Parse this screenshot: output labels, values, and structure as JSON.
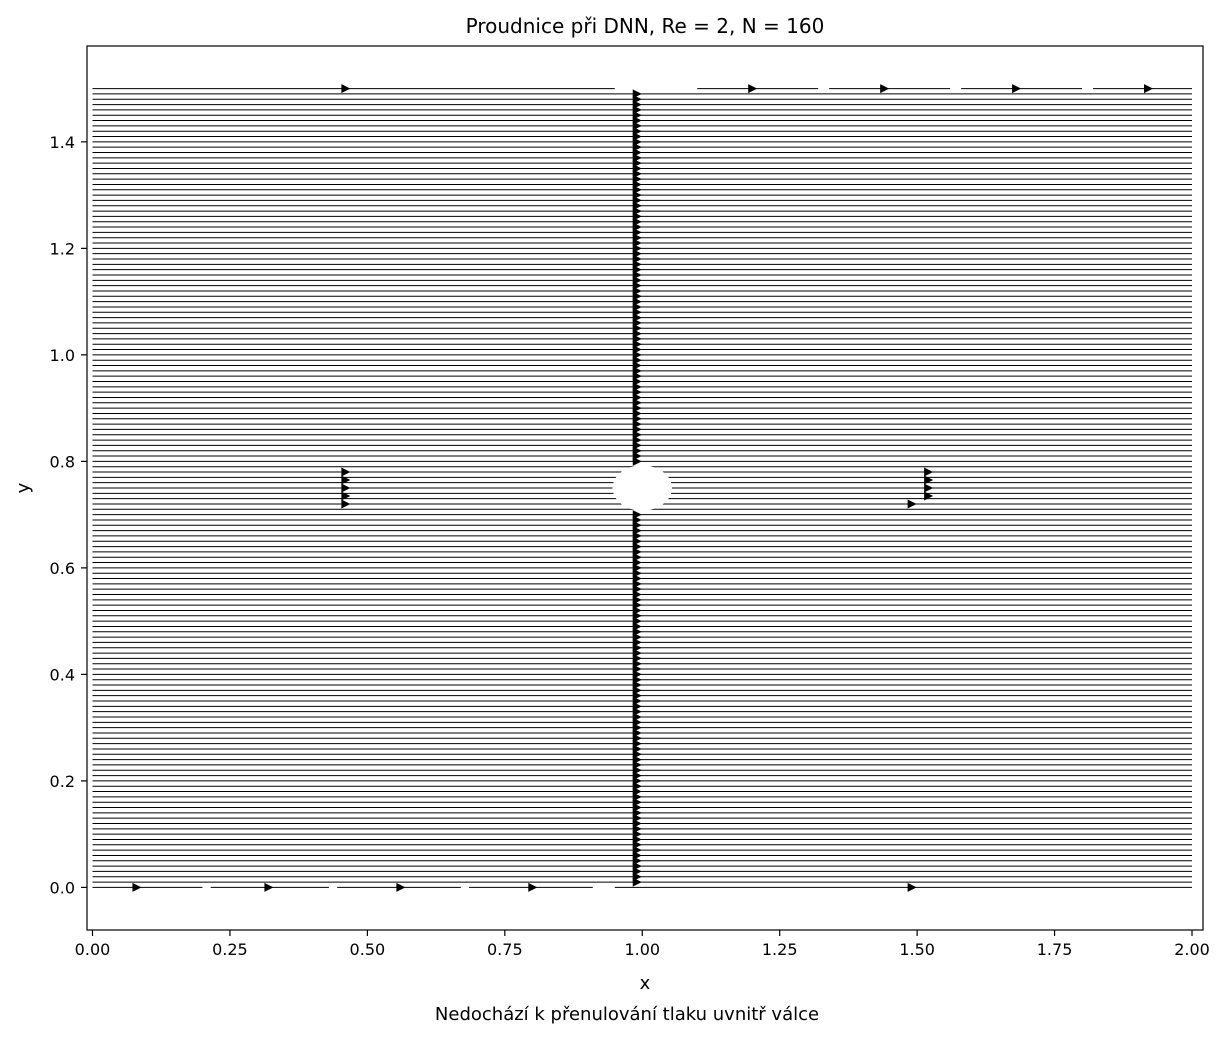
{
  "chart_data": {
    "type": "streamplot",
    "title": "Proudnice při DNN, Re = 2, N = 160",
    "xlabel": "x",
    "ylabel": "y",
    "caption": "Nedochází k přenulování tlaku uvnitř válce",
    "xlim": [
      -0.01,
      2.02
    ],
    "ylim": [
      -0.08,
      1.58
    ],
    "xticks": [
      0.0,
      0.25,
      0.5,
      0.75,
      1.0,
      1.25,
      1.5,
      1.75,
      2.0
    ],
    "xtick_labels": [
      "0.00",
      "0.25",
      "0.50",
      "0.75",
      "1.00",
      "1.25",
      "1.50",
      "1.75",
      "2.00"
    ],
    "yticks": [
      0.0,
      0.2,
      0.4,
      0.6,
      0.8,
      1.0,
      1.2,
      1.4
    ],
    "ytick_labels": [
      "0.0",
      "0.2",
      "0.4",
      "0.6",
      "0.8",
      "1.0",
      "1.2",
      "1.4"
    ],
    "domain": {
      "x": [
        0.0,
        2.0
      ],
      "y": [
        0.0,
        1.5
      ]
    },
    "streamline_count": 150,
    "flow_direction": "+x (left to right, horizontal)",
    "cylinder": {
      "center": [
        1.0,
        0.75
      ],
      "radius": 0.05
    },
    "arrow_column_x": 0.98,
    "arrows_near_cylinder": {
      "left_x": 0.46,
      "right_x": 1.52,
      "y_values": [
        0.72,
        0.735,
        0.75,
        0.765,
        0.78
      ]
    },
    "top_edge_arrows_x": [
      0.46,
      1.2,
      1.44,
      1.68,
      1.92
    ],
    "bottom_edge_arrows_x": [
      0.08,
      0.32,
      0.56,
      0.8,
      1.49
    ],
    "line_color": "#000000",
    "grid": false,
    "legend": "none"
  }
}
